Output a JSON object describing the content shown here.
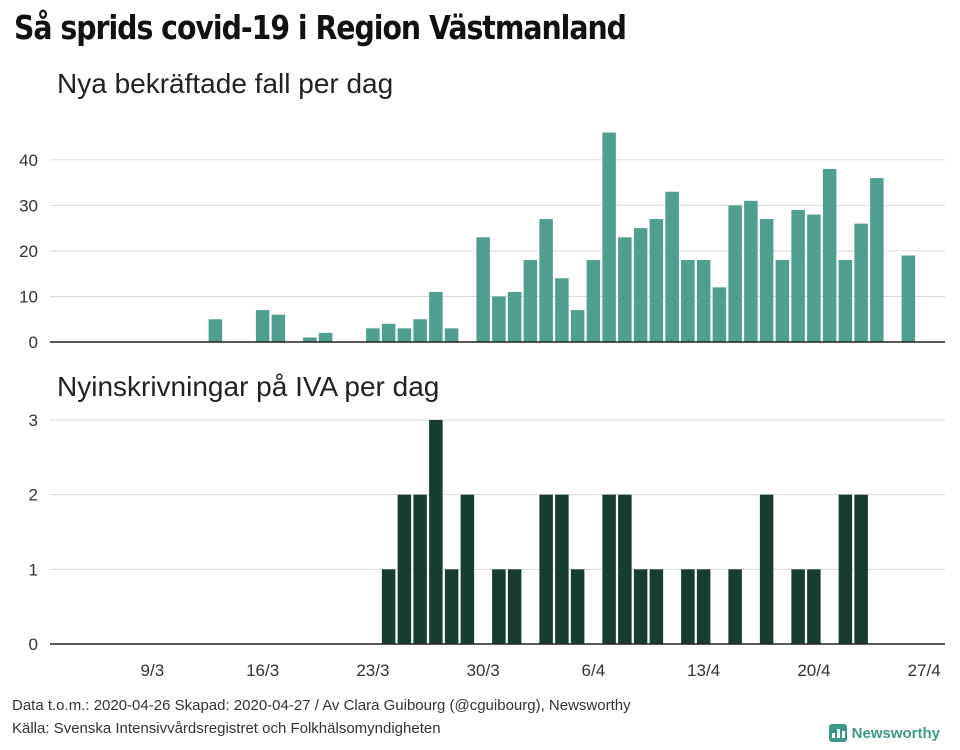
{
  "title": "Så sprids covid-19 i Region Västmanland",
  "colors": {
    "cases": "#4f9e90",
    "icu": "#173d30",
    "grid": "#d9d9d9",
    "axis": "#222222"
  },
  "chart_data": [
    {
      "type": "bar",
      "title": "Nya bekräftade fall per dag",
      "start_date": "2020-03-03",
      "end_date": "2020-04-29",
      "x_tick_labels": [
        "9/3",
        "16/3",
        "23/3",
        "30/3",
        "6/4",
        "13/4",
        "20/4",
        "27/4"
      ],
      "y_ticks": [
        0,
        10,
        20,
        30,
        40
      ],
      "ylim": [
        0,
        47
      ],
      "grid": true,
      "color": "#4f9e90",
      "x": [
        "2020-03-13",
        "2020-03-16",
        "2020-03-17",
        "2020-03-19",
        "2020-03-20",
        "2020-03-23",
        "2020-03-24",
        "2020-03-25",
        "2020-03-26",
        "2020-03-27",
        "2020-03-28",
        "2020-03-30",
        "2020-03-31",
        "2020-04-01",
        "2020-04-02",
        "2020-04-03",
        "2020-04-04",
        "2020-04-05",
        "2020-04-06",
        "2020-04-07",
        "2020-04-08",
        "2020-04-09",
        "2020-04-10",
        "2020-04-11",
        "2020-04-12",
        "2020-04-13",
        "2020-04-14",
        "2020-04-15",
        "2020-04-16",
        "2020-04-17",
        "2020-04-18",
        "2020-04-19",
        "2020-04-20",
        "2020-04-21",
        "2020-04-22",
        "2020-04-23",
        "2020-04-24",
        "2020-04-26"
      ],
      "values": [
        5,
        7,
        6,
        1,
        2,
        3,
        4,
        3,
        5,
        11,
        3,
        23,
        10,
        11,
        18,
        27,
        14,
        7,
        18,
        46,
        23,
        25,
        27,
        33,
        18,
        18,
        12,
        30,
        31,
        27,
        18,
        29,
        28,
        38,
        18,
        26,
        36,
        19
      ]
    },
    {
      "type": "bar",
      "title": "Nyinskrivningar på IVA per dag",
      "start_date": "2020-03-03",
      "end_date": "2020-04-29",
      "x_tick_labels": [
        "9/3",
        "16/3",
        "23/3",
        "30/3",
        "6/4",
        "13/4",
        "20/4",
        "27/4"
      ],
      "y_ticks": [
        0,
        1,
        2,
        3
      ],
      "ylim": [
        0,
        3
      ],
      "grid": true,
      "color": "#173d30",
      "x": [
        "2020-03-24",
        "2020-03-25",
        "2020-03-26",
        "2020-03-27",
        "2020-03-28",
        "2020-03-29",
        "2020-03-31",
        "2020-04-01",
        "2020-04-03",
        "2020-04-04",
        "2020-04-05",
        "2020-04-07",
        "2020-04-08",
        "2020-04-09",
        "2020-04-10",
        "2020-04-12",
        "2020-04-13",
        "2020-04-15",
        "2020-04-17",
        "2020-04-19",
        "2020-04-20",
        "2020-04-22",
        "2020-04-23"
      ],
      "values": [
        1,
        2,
        2,
        3,
        1,
        2,
        1,
        1,
        2,
        2,
        1,
        2,
        2,
        1,
        1,
        1,
        1,
        1,
        2,
        1,
        1,
        2,
        2
      ]
    }
  ],
  "footer": {
    "line1": "Data t.o.m.: 2020-04-26 Skapad: 2020-04-27 / Av Clara Guibourg (@cguibourg), Newsworthy",
    "line2": "Källa: Svenska Intensivvårdsregistret och Folkhälsomyndigheten"
  },
  "logo": {
    "text": "Newsworthy",
    "icon": "bar-chart-logo-icon"
  }
}
